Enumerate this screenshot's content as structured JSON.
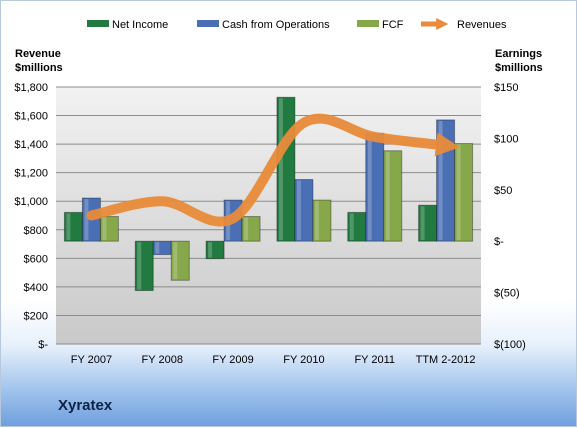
{
  "company": "Xyratex",
  "chart_data": {
    "type": "bar",
    "categories": [
      "FY 2007",
      "FY 2008",
      "FY 2009",
      "FY 2010",
      "FY 2011",
      "TTM 2-2012"
    ],
    "left_axis": {
      "title_line1": "Revenue",
      "title_line2": "$millions",
      "range": [
        0,
        1800
      ],
      "ticks": [
        0,
        200,
        400,
        600,
        800,
        1000,
        1200,
        1400,
        1600,
        1800
      ],
      "tick_labels": [
        "$-",
        "$200",
        "$400",
        "$600",
        "$800",
        "$1,000",
        "$1,200",
        "$1,400",
        "$1,600",
        "$1,800"
      ]
    },
    "right_axis": {
      "title_line1": "Earnings",
      "title_line2": "$millions",
      "range": [
        -100,
        150
      ],
      "ticks": [
        -100,
        -50,
        0,
        50,
        100,
        150
      ],
      "tick_labels": [
        "$(100)",
        "$(50)",
        "$-",
        "$50",
        "$100",
        "$150"
      ]
    },
    "bar_series": [
      {
        "name": "Net Income",
        "color": "#217a3f",
        "values": [
          28,
          -48,
          -17,
          140,
          28,
          35
        ]
      },
      {
        "name": "Cash from Operations",
        "color": "#4a6fb5",
        "values": [
          42,
          -13,
          40,
          60,
          105,
          118
        ]
      },
      {
        "name": "FCF",
        "color": "#86a84a",
        "values": [
          24,
          -38,
          24,
          40,
          88,
          95
        ]
      }
    ],
    "line_series": {
      "name": "Revenues",
      "color": "#e98b3a",
      "values": [
        900,
        1000,
        880,
        1550,
        1450,
        1390
      ]
    },
    "grid": true,
    "legend": "top"
  }
}
